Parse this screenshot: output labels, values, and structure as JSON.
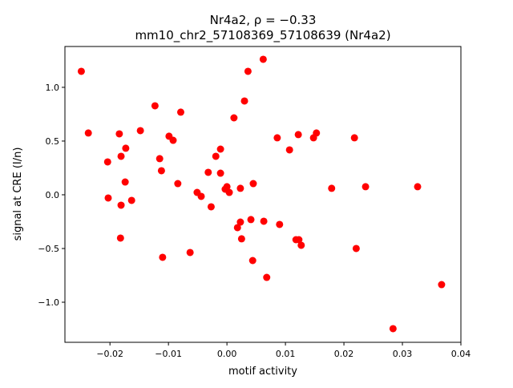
{
  "chart_data": {
    "type": "scatter",
    "title_line1": "Nr4a2, ρ = −0.33",
    "title_line2": "mm10_chr2_57108369_57108639 (Nr4a2)",
    "xlabel": "motif activity",
    "ylabel": "signal at CRE (I/n)",
    "xlim": [
      -0.0277,
      0.04
    ],
    "ylim": [
      -1.373,
      1.38
    ],
    "xticks": [
      -0.02,
      -0.01,
      0.0,
      0.01,
      0.02,
      0.03,
      0.04
    ],
    "xtick_labels": [
      "−0.02",
      "−0.01",
      "0.00",
      "0.01",
      "0.02",
      "0.03",
      "0.04"
    ],
    "yticks": [
      -1.0,
      -0.5,
      0.0,
      0.5,
      1.0
    ],
    "ytick_labels": [
      "−1.0",
      "−0.5",
      "0.0",
      "0.5",
      "1.0"
    ],
    "grid": false,
    "marker_color": "#ff0000",
    "points": [
      [
        -0.0249,
        1.149
      ],
      [
        -0.0237,
        0.575
      ],
      [
        -0.0204,
        0.306
      ],
      [
        -0.0203,
        -0.03
      ],
      [
        -0.0184,
        0.567
      ],
      [
        -0.0181,
        0.358
      ],
      [
        -0.0173,
        0.433
      ],
      [
        -0.0174,
        0.119
      ],
      [
        -0.0181,
        -0.097
      ],
      [
        -0.0182,
        -0.403
      ],
      [
        -0.0163,
        -0.052
      ],
      [
        -0.0148,
        0.597
      ],
      [
        -0.0123,
        0.828
      ],
      [
        -0.0115,
        0.336
      ],
      [
        -0.0112,
        0.224
      ],
      [
        -0.011,
        -0.582
      ],
      [
        -0.0099,
        0.545
      ],
      [
        -0.0092,
        0.507
      ],
      [
        -0.0079,
        0.769
      ],
      [
        -0.0084,
        0.104
      ],
      [
        -0.0063,
        -0.537
      ],
      [
        -0.0051,
        0.022
      ],
      [
        -0.0044,
        -0.015
      ],
      [
        -0.0032,
        0.209
      ],
      [
        -0.0027,
        -0.112
      ],
      [
        -0.0019,
        0.358
      ],
      [
        -0.0011,
        0.425
      ],
      [
        -0.0011,
        0.201
      ],
      [
        -0.0003,
        0.052
      ],
      [
        0.0,
        0.075
      ],
      [
        0.0004,
        0.022
      ],
      [
        0.0012,
        0.716
      ],
      [
        0.0018,
        -0.306
      ],
      [
        0.0023,
        -0.254
      ],
      [
        0.0023,
        0.06
      ],
      [
        0.0025,
        -0.41
      ],
      [
        0.003,
        0.873
      ],
      [
        0.0036,
        1.149
      ],
      [
        0.0041,
        -0.231
      ],
      [
        0.0044,
        -0.612
      ],
      [
        0.0045,
        0.104
      ],
      [
        0.0062,
        1.261
      ],
      [
        0.0063,
        -0.246
      ],
      [
        0.0068,
        -0.769
      ],
      [
        0.0086,
        0.53
      ],
      [
        0.009,
        -0.276
      ],
      [
        0.0107,
        0.418
      ],
      [
        0.0118,
        -0.418
      ],
      [
        0.0122,
        0.56
      ],
      [
        0.0123,
        -0.418
      ],
      [
        0.0127,
        -0.47
      ],
      [
        0.0148,
        0.53
      ],
      [
        0.0153,
        0.575
      ],
      [
        0.0179,
        0.06
      ],
      [
        0.0218,
        0.53
      ],
      [
        0.0221,
        -0.5
      ],
      [
        0.0237,
        0.075
      ],
      [
        0.0284,
        -1.246
      ],
      [
        0.0326,
        0.075
      ],
      [
        0.0367,
        -0.836
      ]
    ]
  }
}
